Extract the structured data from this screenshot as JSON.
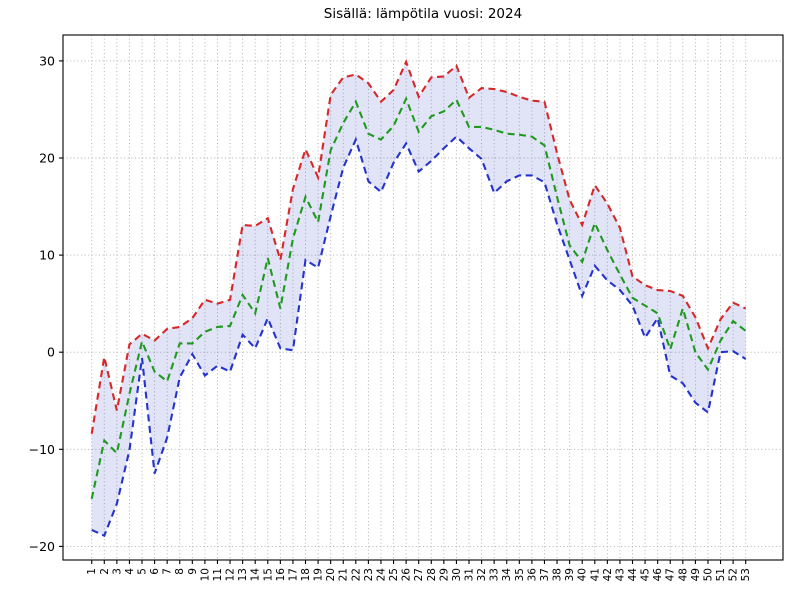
{
  "title": "Sisällä: lämpötila vuosi: 2024",
  "colors": {
    "max_line": "#d62828",
    "mean_line": "#1f9a1f",
    "min_line": "#2433cc",
    "band_fill": "#3344cc",
    "grid": "#aaaaaa",
    "axis": "#000000"
  },
  "chart_data": {
    "type": "line",
    "title": "Sisällä: lämpötila vuosi: 2024",
    "xlabel": "",
    "ylabel": "",
    "x": [
      1,
      2,
      3,
      4,
      5,
      6,
      7,
      8,
      9,
      10,
      11,
      12,
      13,
      14,
      15,
      16,
      17,
      18,
      19,
      20,
      21,
      22,
      23,
      24,
      25,
      26,
      27,
      28,
      29,
      30,
      31,
      32,
      33,
      34,
      35,
      36,
      37,
      38,
      39,
      40,
      41,
      42,
      43,
      44,
      45,
      46,
      47,
      48,
      49,
      50,
      51,
      52,
      53
    ],
    "x_tick_labels": [
      "1",
      "2",
      "3",
      "4",
      "5",
      "6",
      "7",
      "8",
      "9",
      "10",
      "11",
      "12",
      "13",
      "14",
      "15",
      "16",
      "17",
      "18",
      "19",
      "20",
      "21",
      "22",
      "23",
      "24",
      "25",
      "26",
      "27",
      "28",
      "29",
      "30",
      "31",
      "32",
      "33",
      "34",
      "35",
      "36",
      "37",
      "38",
      "39",
      "40",
      "41",
      "42",
      "43",
      "44",
      "45",
      "46",
      "47",
      "48",
      "49",
      "50",
      "51",
      "52",
      "53"
    ],
    "y_ticks": [
      {
        "v": -20,
        "label": "−20"
      },
      {
        "v": -10,
        "label": "−10"
      },
      {
        "v": 0,
        "label": "0"
      },
      {
        "v": 10,
        "label": "10"
      },
      {
        "v": 20,
        "label": "20"
      },
      {
        "v": 30,
        "label": "30"
      }
    ],
    "ylim": [
      -21.4,
      32.7
    ],
    "xlim": [
      -1.6,
      55.6
    ],
    "grid": true,
    "legend": false,
    "line_style": "dashed",
    "band_between": [
      "max",
      "min"
    ],
    "series": [
      {
        "name": "max",
        "color": "#d62828",
        "values": [
          -8.4,
          -0.5,
          -6.0,
          0.8,
          1.9,
          1.2,
          2.4,
          2.6,
          3.5,
          5.4,
          5.0,
          5.4,
          13.1,
          13.0,
          13.8,
          9.5,
          16.8,
          20.9,
          18.0,
          26.5,
          28.3,
          28.6,
          27.7,
          25.8,
          27.0,
          29.9,
          26.3,
          28.3,
          28.4,
          29.5,
          26.2,
          27.2,
          27.1,
          26.8,
          26.3,
          25.9,
          25.8,
          20.5,
          15.7,
          13.1,
          17.2,
          15.3,
          12.8,
          7.8,
          6.9,
          6.4,
          6.3,
          5.8,
          3.6,
          0.4,
          3.4,
          5.1,
          4.5
        ]
      },
      {
        "name": "mean",
        "color": "#1f9a1f",
        "values": [
          -15.1,
          -9.1,
          -10.4,
          -4.3,
          1.1,
          -2.0,
          -3.0,
          0.9,
          0.9,
          2.1,
          2.6,
          2.7,
          5.9,
          4.0,
          9.7,
          4.5,
          11.7,
          16.0,
          13.4,
          20.8,
          23.6,
          25.8,
          22.5,
          21.9,
          23.3,
          26.1,
          22.7,
          24.3,
          24.8,
          26.0,
          23.2,
          23.2,
          22.9,
          22.5,
          22.4,
          22.2,
          21.3,
          16.0,
          11.0,
          9.3,
          13.3,
          10.5,
          8.0,
          5.6,
          4.8,
          4.0,
          0.3,
          4.5,
          0.0,
          -1.8,
          1.2,
          3.2,
          2.2
        ]
      },
      {
        "name": "min",
        "color": "#2433cc",
        "values": [
          -18.3,
          -18.9,
          -15.6,
          -10.1,
          -0.6,
          -12.5,
          -8.8,
          -2.6,
          -0.2,
          -2.4,
          -1.4,
          -2.0,
          1.8,
          0.4,
          3.5,
          0.4,
          0.2,
          9.5,
          8.7,
          14.0,
          19.0,
          21.9,
          17.6,
          16.5,
          19.5,
          21.5,
          18.6,
          19.7,
          21.0,
          22.2,
          21.0,
          19.9,
          16.4,
          17.6,
          18.2,
          18.2,
          17.5,
          13.2,
          9.5,
          5.8,
          8.9,
          7.4,
          6.4,
          4.8,
          1.5,
          3.5,
          -2.4,
          -3.2,
          -5.2,
          -6.2,
          0.0,
          0.1,
          -0.7
        ]
      }
    ]
  }
}
